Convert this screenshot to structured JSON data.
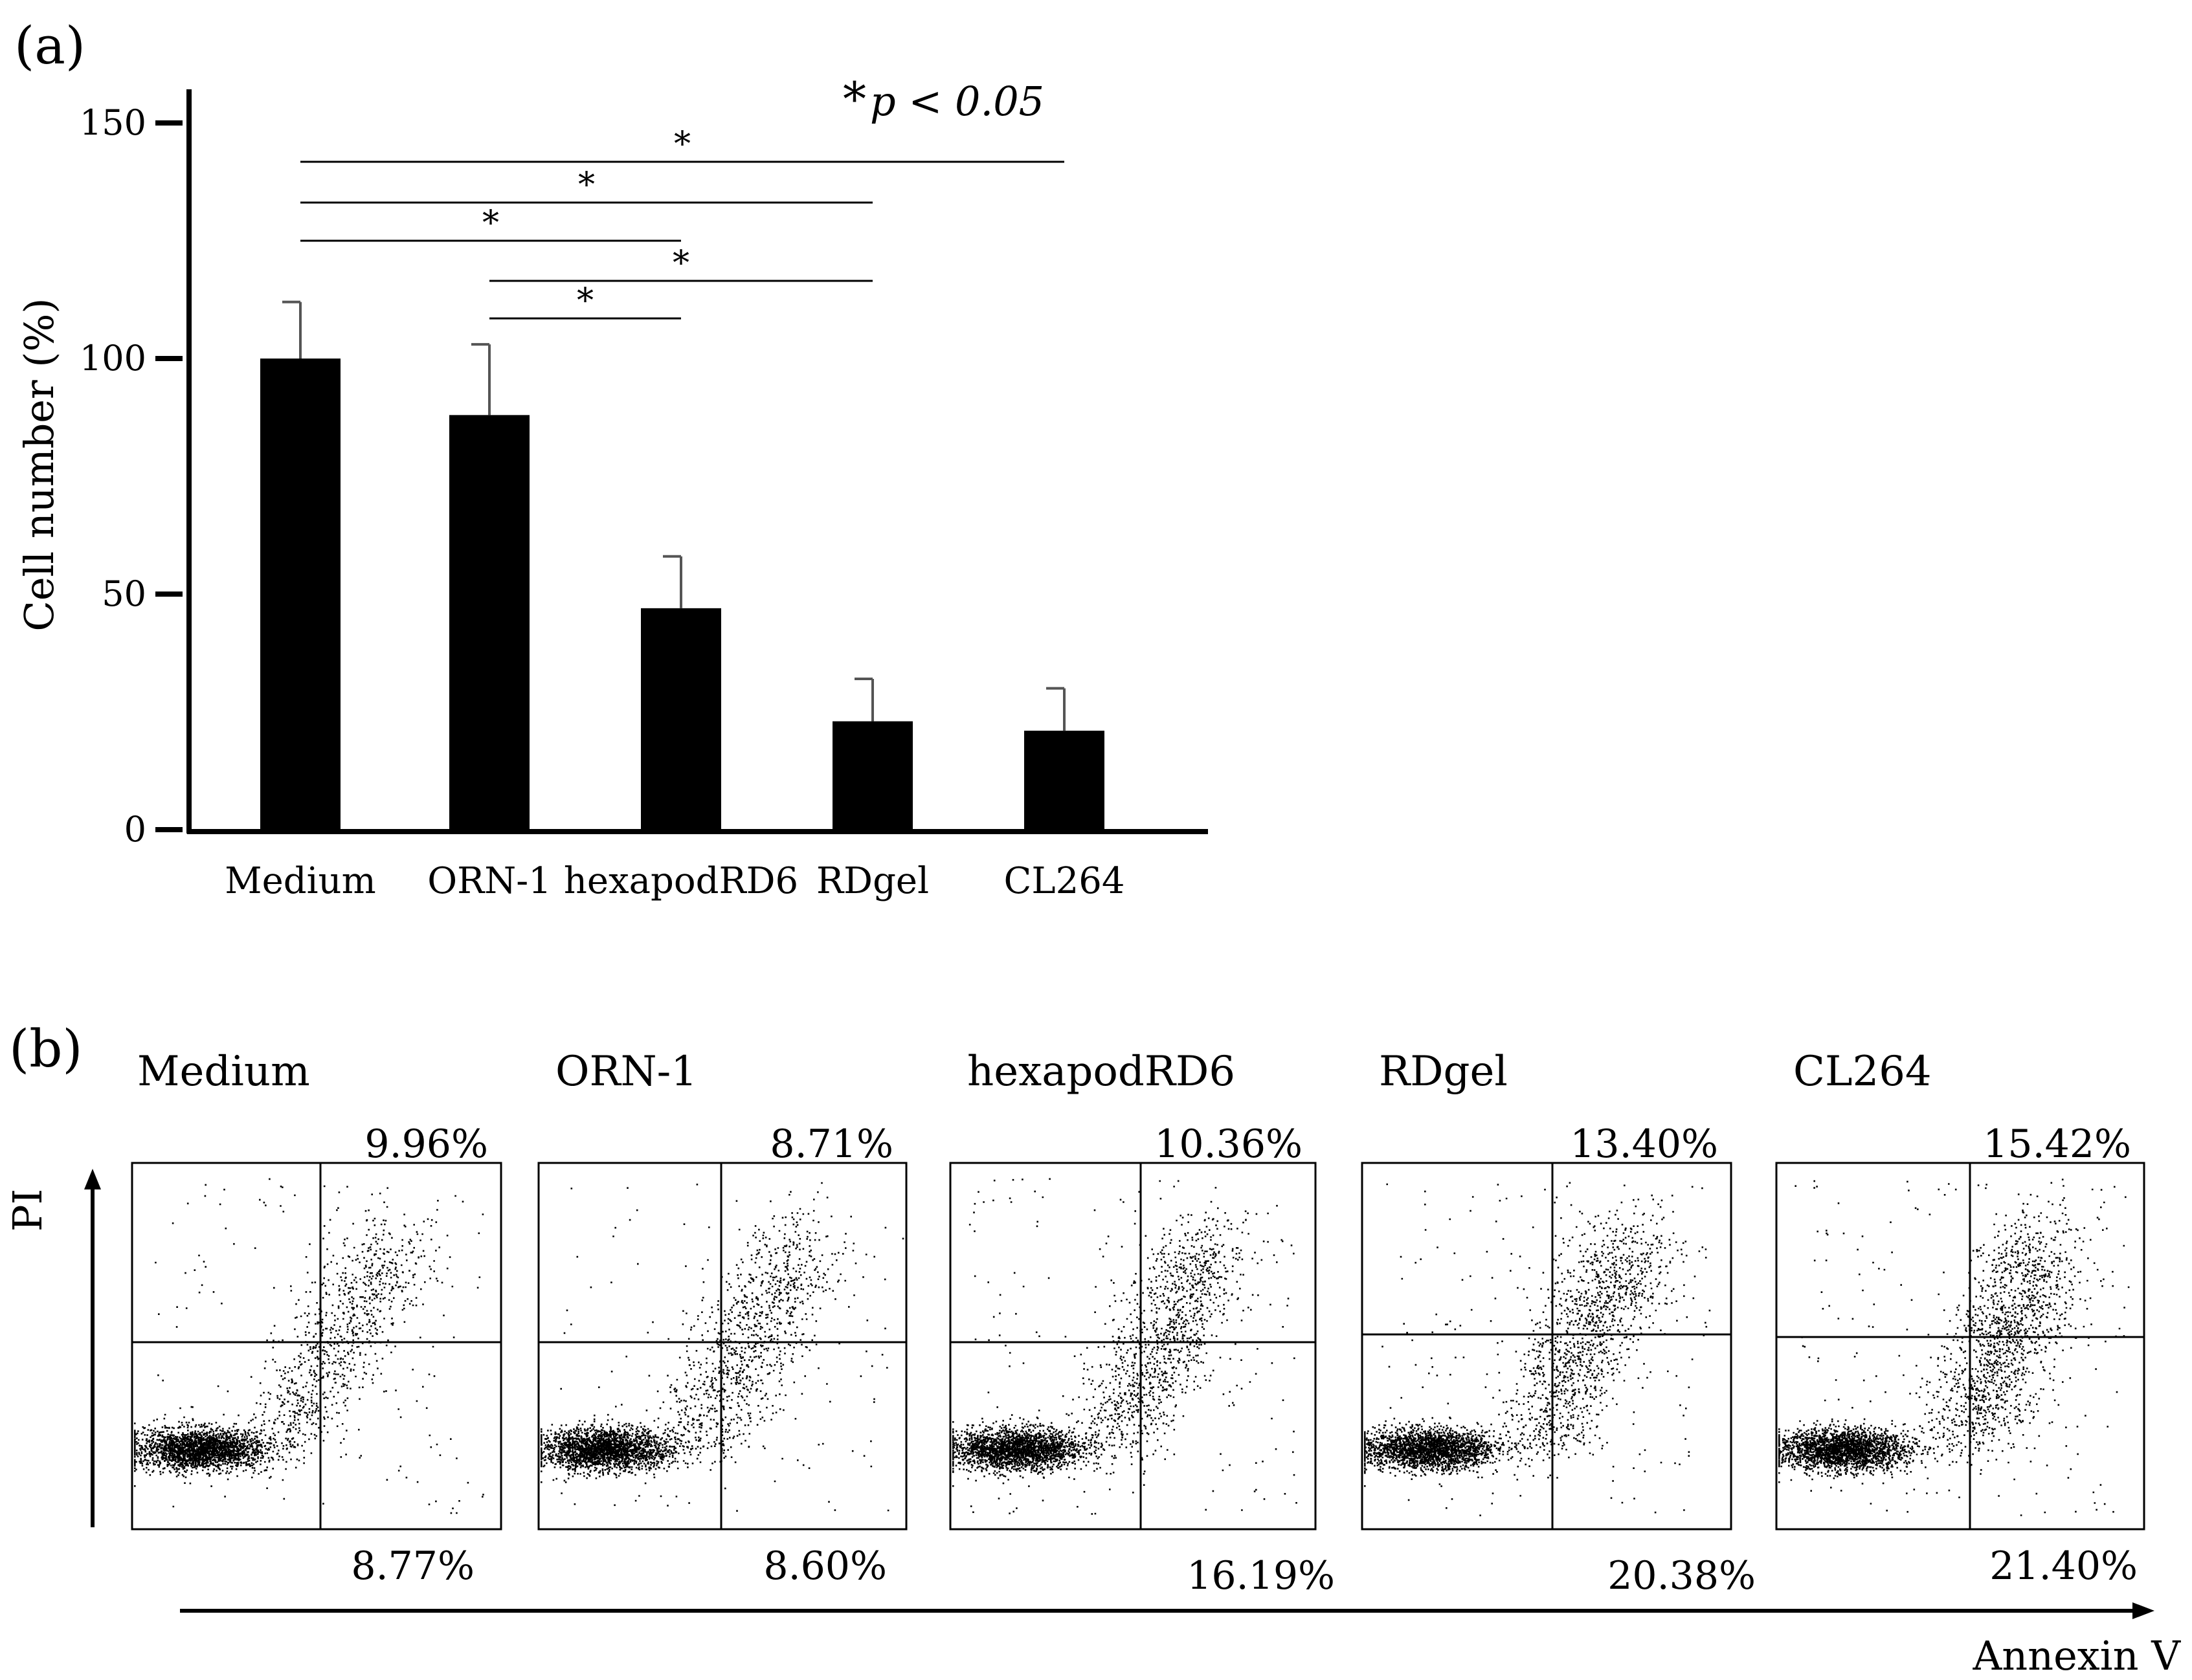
{
  "chart_data": [
    {
      "type": "bar",
      "panel_label": "(a)",
      "categories": [
        "Medium",
        "ORN-1",
        "hexapodRD6",
        "RDgel",
        "CL264"
      ],
      "series": [
        {
          "name": "Cell number (%)",
          "values": [
            100,
            88,
            47,
            23,
            21
          ]
        }
      ],
      "error_bars": [
        12,
        15,
        11,
        9,
        9
      ],
      "ylabel": "Cell number (%)",
      "xlabel": "",
      "ylim": [
        0,
        150
      ],
      "yticks": [
        "0",
        "50",
        "100",
        "150"
      ],
      "ytick_values": [
        0,
        50,
        100,
        150
      ],
      "significance_note": {
        "symbol": "*",
        "text": "p < 0.05"
      },
      "significance": [
        {
          "from": 0,
          "to": 4,
          "label": "*"
        },
        {
          "from": 0,
          "to": 3,
          "label": "*"
        },
        {
          "from": 0,
          "to": 2,
          "label": "*"
        },
        {
          "from": 1,
          "to": 3,
          "label": "*"
        },
        {
          "from": 1,
          "to": 2,
          "label": "*"
        }
      ]
    },
    {
      "type": "scatter",
      "panel_label": "(b)",
      "xlabel": "Annexin V",
      "ylabel": "PI",
      "plots": [
        {
          "name": "Medium",
          "upper_right": "9.96%",
          "lower_right": "8.77%"
        },
        {
          "name": "ORN-1",
          "upper_right": "8.71%",
          "lower_right": "8.60%"
        },
        {
          "name": "hexapodRD6",
          "upper_right": "10.36%",
          "lower_right": "16.19%"
        },
        {
          "name": "RDgel",
          "upper_right": "13.40%",
          "lower_right": "20.38%"
        },
        {
          "name": "CL264",
          "upper_right": "15.42%",
          "lower_right": "21.40%"
        }
      ]
    }
  ],
  "colors": {
    "ink": "#000000",
    "background": "#ffffff"
  }
}
